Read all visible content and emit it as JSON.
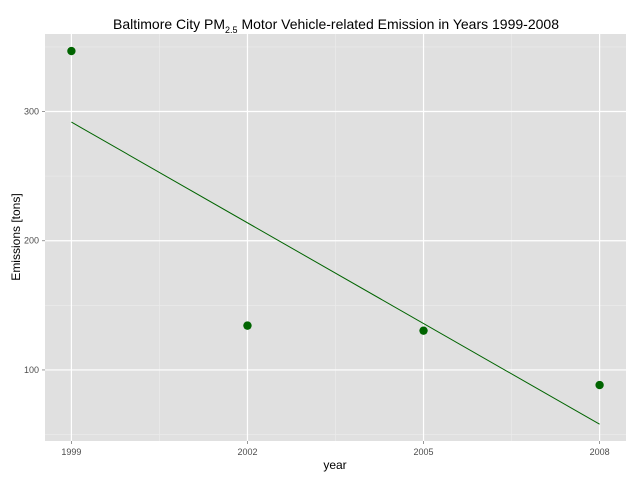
{
  "chart_data": {
    "type": "scatter",
    "title": {
      "prefix": "Baltimore City PM",
      "subscript": "2.5",
      "suffix": " Motor Vehicle-related Emission in Years 1999-2008"
    },
    "xlabel": "year",
    "ylabel": "Emissions [tons]",
    "x_ticks": [
      1999,
      2002,
      2005,
      2008
    ],
    "y_ticks": [
      100,
      200,
      300
    ],
    "xlim": [
      1998.55,
      2008.45
    ],
    "ylim": [
      45,
      360
    ],
    "grid": true,
    "colors": {
      "panel": "#e0e0e0",
      "grid_major": "#ffffff",
      "grid_minor": "#ececec",
      "points": "#006400",
      "trend_line": "#006400"
    },
    "series": [
      {
        "points": [
          {
            "x": 1999,
            "y": 346.8
          },
          {
            "x": 2002,
            "y": 134.3
          },
          {
            "x": 2005,
            "y": 130.4
          },
          {
            "x": 2008,
            "y": 88.3
          }
        ]
      }
    ],
    "trend_line": {
      "type": "linear",
      "x": [
        1999,
        2008
      ],
      "y": [
        291.8,
        58.0
      ]
    }
  }
}
